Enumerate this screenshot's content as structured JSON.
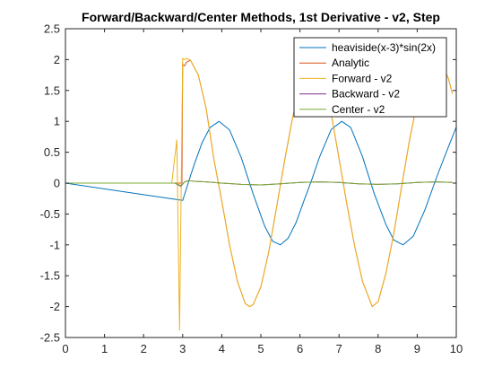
{
  "chart_data": {
    "type": "line",
    "title": "Forward/Backward/Center Methods, 1st Derivative - v2, Step",
    "xlabel": "",
    "ylabel": "",
    "xlim": [
      0,
      10
    ],
    "ylim": [
      -2.5,
      2.5
    ],
    "x_ticks": [
      "0",
      "1",
      "2",
      "3",
      "4",
      "5",
      "6",
      "7",
      "8",
      "9",
      "10"
    ],
    "y_ticks": [
      "-2.5",
      "-2",
      "-1.5",
      "-1",
      "-0.5",
      "0",
      "0.5",
      "1",
      "1.5",
      "2",
      "2.5"
    ],
    "grid": false,
    "legend_position": "top-right",
    "series": [
      {
        "name": "heaviside(x-3)*sin(2x)",
        "color": "#0072BD",
        "x": [
          0,
          3.0,
          3.05,
          3.1,
          3.2,
          3.3,
          3.5,
          3.7,
          3.93,
          4.2,
          4.5,
          4.8,
          5.1,
          5.3,
          5.5,
          5.7,
          5.9,
          6.1,
          6.3,
          6.5,
          6.8,
          7.07,
          7.3,
          7.6,
          7.9,
          8.2,
          8.4,
          8.64,
          8.9,
          9.2,
          9.5,
          9.8,
          10.0
        ],
        "y": [
          0,
          -0.28,
          -0.18,
          -0.08,
          0.12,
          0.31,
          0.66,
          0.9,
          1.0,
          0.86,
          0.41,
          -0.17,
          -0.7,
          -0.94,
          -1.0,
          -0.89,
          -0.64,
          -0.29,
          0.05,
          0.42,
          0.87,
          1.0,
          0.9,
          0.43,
          -0.17,
          -0.67,
          -0.92,
          -1.0,
          -0.86,
          -0.43,
          0.1,
          0.59,
          0.91
        ]
      },
      {
        "name": "Analytic",
        "color": "#D95319",
        "x": [
          0,
          2.98,
          3.0,
          3.05,
          3.1,
          3.2,
          3.4,
          3.6,
          3.8,
          4.0,
          4.2,
          4.4,
          4.6,
          4.71,
          4.8,
          5.0,
          5.2,
          5.4,
          5.6,
          5.8,
          6.0,
          6.2,
          6.28,
          6.4,
          6.6,
          6.8,
          7.0,
          7.2,
          7.4,
          7.6,
          7.85,
          8.0,
          8.2,
          8.4,
          8.6,
          8.8,
          9.0,
          9.2,
          9.42,
          9.6,
          9.8,
          9.9
        ],
        "y": [
          0,
          0,
          1.92,
          1.9,
          1.96,
          1.99,
          1.75,
          1.21,
          0.38,
          -0.29,
          -1.0,
          -1.59,
          -1.95,
          -2.0,
          -1.97,
          -1.68,
          -1.12,
          -0.4,
          0.34,
          1.02,
          1.59,
          1.93,
          2.0,
          1.96,
          1.69,
          1.12,
          0.4,
          -0.34,
          -1.02,
          -1.59,
          -2.0,
          -1.92,
          -1.46,
          -0.82,
          -0.06,
          0.68,
          1.32,
          1.79,
          2.0,
          1.98,
          1.69,
          1.45
        ]
      },
      {
        "name": "Forward - v2",
        "color": "#EDB120",
        "x": [
          0,
          2.72,
          2.85,
          2.92,
          3.0,
          3.05,
          3.1,
          3.2,
          3.4,
          3.6,
          3.8,
          4.0,
          4.2,
          4.4,
          4.6,
          4.71,
          4.8,
          5.0,
          5.2,
          5.4,
          5.6,
          5.8,
          6.0,
          6.2,
          6.28,
          6.4,
          6.6,
          6.8,
          7.0,
          7.2,
          7.4,
          7.6,
          7.85,
          8.0,
          8.2,
          8.4,
          8.6,
          8.8,
          9.0,
          9.2,
          9.42,
          9.6,
          9.8,
          9.9
        ],
        "y": [
          0,
          0,
          0.7,
          -2.38,
          2.02,
          2.0,
          2.02,
          1.99,
          1.75,
          1.21,
          0.38,
          -0.29,
          -1.0,
          -1.59,
          -1.95,
          -2.0,
          -1.97,
          -1.68,
          -1.12,
          -0.4,
          0.34,
          1.02,
          1.59,
          1.93,
          2.0,
          1.96,
          1.69,
          1.12,
          0.4,
          -0.34,
          -1.02,
          -1.59,
          -2.0,
          -1.92,
          -1.46,
          -0.82,
          -0.06,
          0.68,
          1.32,
          1.79,
          2.0,
          1.98,
          1.69,
          1.45
        ]
      },
      {
        "name": "Backward - v2",
        "color": "#7E2F8E",
        "x": [
          0,
          2.8,
          2.95,
          3.05,
          3.15,
          3.3,
          3.6,
          4.0,
          4.5,
          5.0,
          5.5,
          6.0,
          6.5,
          7.0,
          7.5,
          8.0,
          8.5,
          9.0,
          9.5,
          9.9
        ],
        "y": [
          0,
          0,
          -0.05,
          0.02,
          0.04,
          0.03,
          0.02,
          0.0,
          -0.02,
          -0.03,
          -0.01,
          0.01,
          0.02,
          0.01,
          -0.01,
          -0.02,
          -0.01,
          0.01,
          0.02,
          0.01
        ]
      },
      {
        "name": "Center - v2",
        "color": "#77AC30",
        "x": [
          0,
          2.8,
          2.95,
          3.05,
          3.15,
          3.3,
          3.6,
          4.0,
          4.5,
          5.0,
          5.5,
          6.0,
          6.5,
          7.0,
          7.5,
          8.0,
          8.5,
          9.0,
          9.5,
          9.9
        ],
        "y": [
          0,
          0,
          -0.04,
          0.02,
          0.04,
          0.03,
          0.02,
          0.0,
          -0.02,
          -0.03,
          -0.01,
          0.01,
          0.02,
          0.01,
          -0.01,
          -0.02,
          -0.01,
          0.01,
          0.02,
          0.01
        ]
      }
    ]
  }
}
